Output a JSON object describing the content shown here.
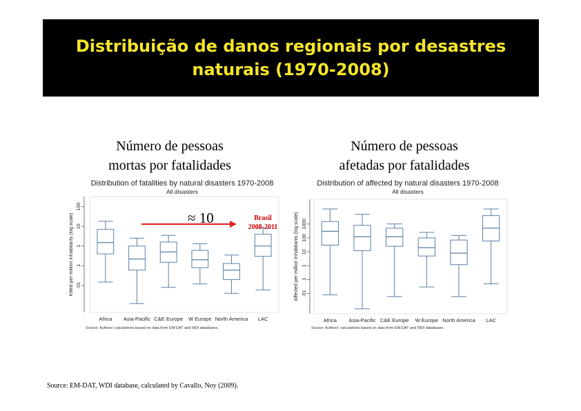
{
  "slide": {
    "title_line1": "Distribuição de danos regionais por desastres",
    "title_line2": "naturais (1970-2008)",
    "caption_left_line1": "Número de pessoas",
    "caption_left_line2": "mortas por fatalidades",
    "caption_right_line1": "Número de pessoas",
    "caption_right_line2": "afetadas por fatalidades",
    "annotation_approx": "≈ 10",
    "annotation_brasil_line1": "Brasil",
    "annotation_brasil_line2": "2008-2011",
    "source": "Source: EM-DAT, WDI database, calculated by Cavallo, Noy (2009).",
    "colors": {
      "banner_bg": "#000000",
      "title": "#f5e52a",
      "box": "#5a7fa6",
      "arrow": "#dd2222"
    }
  },
  "chart_data": [
    {
      "type": "box",
      "title": "Distribution of fatalities by natural disasters 1970-2008",
      "subtitle": "All disasters",
      "ylabel": "Killed per million inhabitants (log scale)",
      "yscale": "log",
      "ylim": [
        0.0007,
        200
      ],
      "yticks": [
        0.01,
        0.1,
        1,
        10,
        100
      ],
      "ytick_labels": [
        ".01",
        ".1",
        "1",
        "10",
        "100"
      ],
      "categories": [
        "Africa",
        "Asia-Pacific",
        "C&E Europe",
        "W Europe",
        "North America",
        "LAC"
      ],
      "boxes": [
        {
          "whisker_low": 0.015,
          "q1": 0.4,
          "median": 1.5,
          "q3": 7,
          "whisker_high": 18
        },
        {
          "whisker_low": 0.0012,
          "q1": 0.06,
          "median": 0.22,
          "q3": 1.0,
          "whisker_high": 2.5
        },
        {
          "whisker_low": 0.008,
          "q1": 0.15,
          "median": 0.5,
          "q3": 1.6,
          "whisker_high": 3.5
        },
        {
          "whisker_low": 0.012,
          "q1": 0.08,
          "median": 0.2,
          "q3": 0.6,
          "whisker_high": 1.3
        },
        {
          "whisker_low": 0.004,
          "q1": 0.02,
          "median": 0.06,
          "q3": 0.13,
          "whisker_high": 0.35
        },
        {
          "whisker_low": 0.006,
          "q1": 0.3,
          "median": 1.0,
          "q3": 4,
          "whisker_high": 8
        }
      ],
      "note": "Source: Authors' calculations based on data from EM-DAT and WDI databases."
    },
    {
      "type": "box",
      "title": "Distribution of affected by natural disasters 1970-2008",
      "subtitle": "All disasters",
      "ylabel": "Affected per million inhabitants (log scale)",
      "yscale": "log",
      "ylim": [
        0.0007,
        30000
      ],
      "yticks": [
        0.01,
        0.1,
        1,
        10,
        100,
        1000
      ],
      "ytick_labels": [
        ".01",
        ".1",
        "1",
        "10",
        "100",
        "1000"
      ],
      "categories": [
        "Africa",
        "Asia-Pacific",
        "C&E Europe",
        "W Europe",
        "North America",
        "LAC"
      ],
      "boxes": [
        {
          "whisker_low": 0.008,
          "q1": 30,
          "median": 300,
          "q3": 1500,
          "whisker_high": 12000
        },
        {
          "whisker_low": 0.0008,
          "q1": 12,
          "median": 120,
          "q3": 800,
          "whisker_high": 5000
        },
        {
          "whisker_low": 0.006,
          "q1": 25,
          "median": 120,
          "q3": 500,
          "whisker_high": 1000
        },
        {
          "whisker_low": 0.03,
          "q1": 5,
          "median": 20,
          "q3": 100,
          "whisker_high": 250
        },
        {
          "whisker_low": 0.006,
          "q1": 1.2,
          "median": 8,
          "q3": 70,
          "whisker_high": 150
        },
        {
          "whisker_low": 0.05,
          "q1": 60,
          "median": 500,
          "q3": 4000,
          "whisker_high": 12000
        }
      ],
      "note": "Source: Authors' calculations based on data from EM-DAT and WDI databases."
    }
  ]
}
